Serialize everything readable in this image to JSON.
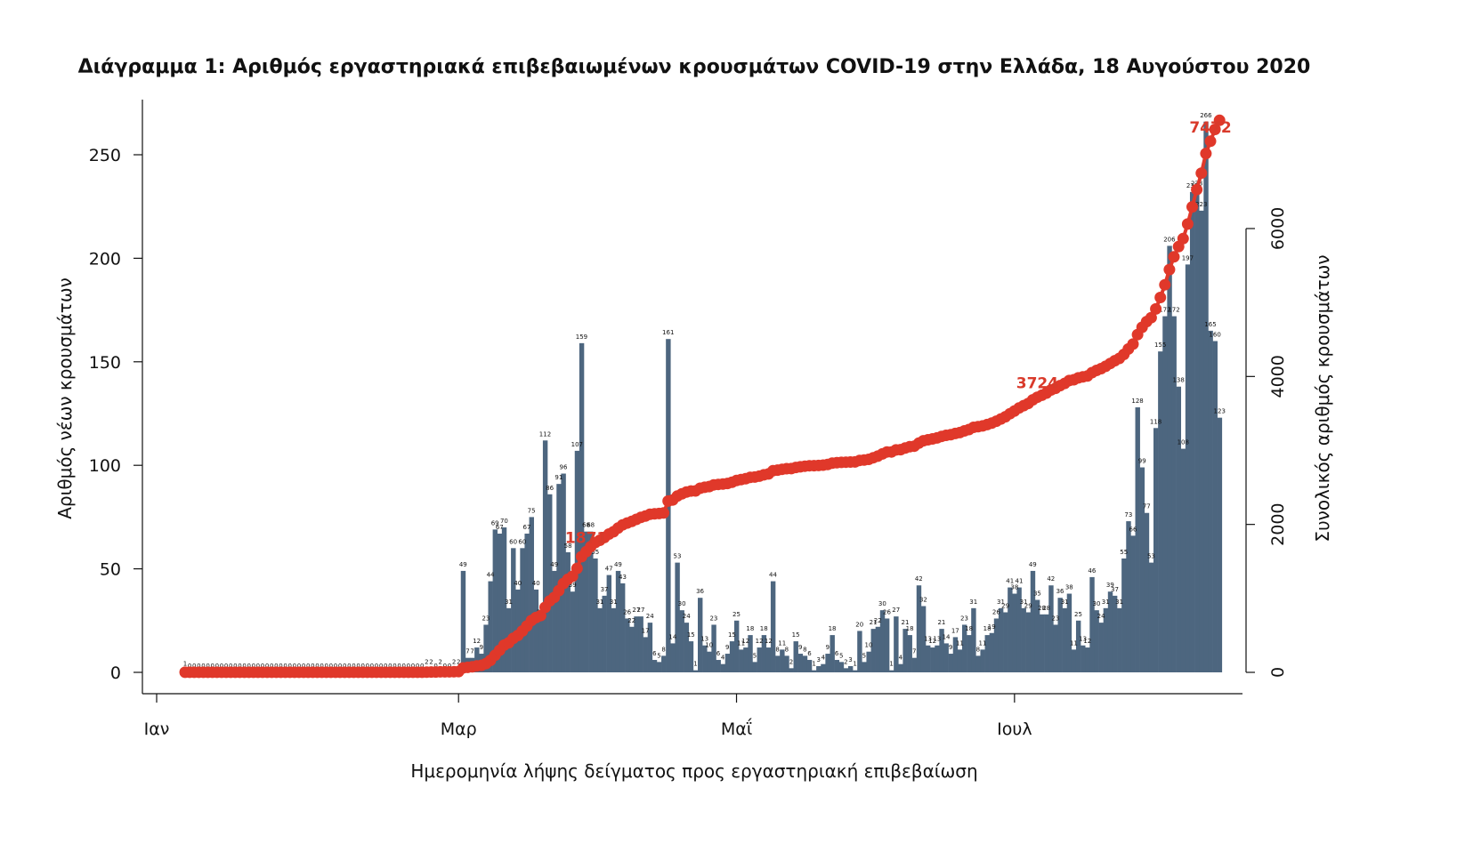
{
  "chart_data": {
    "type": "bar",
    "title": "Διάγραμμα 1: Αριθμός εργαστηριακά επιβεβαιωμένων κρουσμάτων COVID-19 στην Ελλάδα, 18 Αυγούστου 2020",
    "xlabel": "Ημερομηνία λήψης δείγματος προς εργαστηριακή επιβεβαίωση",
    "ylabel": "Αριθμός νέων κρουσμάτων",
    "y2label": "Συνολικός αριθμός κρουσμάτων",
    "ylim": [
      0,
      275
    ],
    "y2lim": [
      0,
      6000
    ],
    "yticks": [
      "0",
      "50",
      "100",
      "150",
      "200",
      "250"
    ],
    "y2ticks": [
      "0",
      "2000",
      "4000",
      "6000"
    ],
    "xticks": [
      {
        "label": "Ιαν",
        "day": -8
      },
      {
        "label": "Μαρ",
        "day": 60
      },
      {
        "label": "Μαΐ",
        "day": 121
      },
      {
        "label": "Ιουλ",
        "day": 182
      }
    ],
    "bar_color": "#4d667f",
    "line_color": "#e0382a",
    "start_day": 0,
    "daily_cases": [
      1,
      0,
      0,
      0,
      0,
      0,
      0,
      0,
      0,
      0,
      0,
      0,
      0,
      0,
      0,
      0,
      0,
      0,
      0,
      0,
      0,
      0,
      0,
      0,
      0,
      0,
      0,
      0,
      0,
      0,
      0,
      0,
      0,
      0,
      0,
      0,
      0,
      0,
      0,
      0,
      0,
      0,
      0,
      0,
      0,
      0,
      0,
      0,
      0,
      0,
      0,
      0,
      0,
      2,
      2,
      0,
      2,
      0,
      0,
      2,
      2,
      49,
      7,
      7,
      12,
      9,
      23,
      44,
      69,
      67,
      70,
      31,
      60,
      40,
      60,
      67,
      75,
      40,
      26,
      112,
      86,
      49,
      91,
      96,
      58,
      39,
      107,
      159,
      68,
      68,
      55,
      31,
      37,
      47,
      31,
      49,
      43,
      26,
      22,
      27,
      27,
      17,
      24,
      6,
      5,
      8,
      161,
      14,
      53,
      30,
      24,
      15,
      1,
      36,
      13,
      10,
      23,
      6,
      4,
      9,
      15,
      25,
      11,
      12,
      18,
      5,
      12,
      18,
      12,
      44,
      8,
      11,
      8,
      2,
      15,
      9,
      8,
      6,
      1,
      3,
      4,
      9,
      18,
      6,
      5,
      2,
      3,
      1,
      20,
      5,
      10,
      21,
      22,
      30,
      26,
      1,
      27,
      4,
      21,
      18,
      7,
      42,
      32,
      13,
      12,
      13,
      21,
      14,
      9,
      17,
      11,
      23,
      18,
      31,
      8,
      11,
      18,
      19,
      26,
      31,
      29,
      41,
      38,
      41,
      31,
      29,
      49,
      35,
      28,
      28,
      42,
      23,
      36,
      31,
      38,
      11,
      25,
      13,
      12,
      46,
      30,
      24,
      31,
      39,
      37,
      31,
      55,
      73,
      66,
      128,
      99,
      77,
      53,
      118,
      155,
      172,
      206,
      172,
      138,
      108,
      197,
      232,
      233,
      223,
      266,
      165,
      160,
      123
    ],
    "annotations": [
      {
        "text": "1871",
        "day": 88
      },
      {
        "text": "3724",
        "day": 187
      },
      {
        "text": "7472",
        "day": 225
      }
    ]
  }
}
